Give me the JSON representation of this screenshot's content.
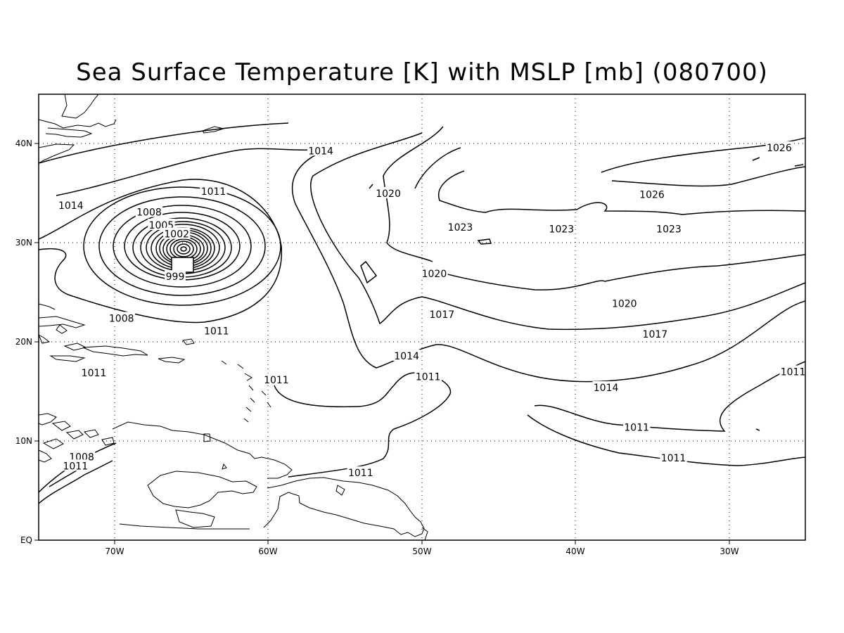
{
  "title": "Sea Surface Temperature [K] with MSLP [mb] (080700)",
  "axes": {
    "x_ticks": [
      "70W",
      "60W",
      "50W",
      "40W",
      "30W"
    ],
    "y_ticks": [
      "40N",
      "30N",
      "20N",
      "10N",
      "EQ"
    ],
    "lon_range": [
      -75,
      -25
    ],
    "lat_range": [
      0,
      45
    ],
    "grid": "dotted"
  },
  "contour_labels": [
    {
      "text": "1014",
      "lon": -56.6,
      "lat": 39.3
    },
    {
      "text": "1020",
      "lon": -52.2,
      "lat": 35.0
    },
    {
      "text": "1026",
      "lon": -26.7,
      "lat": 39.6
    },
    {
      "text": "1026",
      "lon": -35.0,
      "lat": 34.9
    },
    {
      "text": "1023",
      "lon": -47.5,
      "lat": 31.6
    },
    {
      "text": "1023",
      "lon": -40.9,
      "lat": 31.4
    },
    {
      "text": "1023",
      "lon": -33.9,
      "lat": 31.4
    },
    {
      "text": "1014",
      "lon": -72.9,
      "lat": 33.8
    },
    {
      "text": "1011",
      "lon": -63.6,
      "lat": 35.2
    },
    {
      "text": "1008",
      "lon": -67.8,
      "lat": 33.1
    },
    {
      "text": "1005",
      "lon": -67.0,
      "lat": 31.8
    },
    {
      "text": "1002",
      "lon": -66.0,
      "lat": 30.9
    },
    {
      "text": "999",
      "lon": -66.1,
      "lat": 26.6
    },
    {
      "text": "1020",
      "lon": -49.2,
      "lat": 26.9
    },
    {
      "text": "1020",
      "lon": -36.8,
      "lat": 23.9
    },
    {
      "text": "1008",
      "lon": -69.6,
      "lat": 22.4
    },
    {
      "text": "1017",
      "lon": -48.7,
      "lat": 22.8
    },
    {
      "text": "1017",
      "lon": -34.8,
      "lat": 20.8
    },
    {
      "text": "1011",
      "lon": -63.4,
      "lat": 21.1
    },
    {
      "text": "1014",
      "lon": -51.0,
      "lat": 18.6
    },
    {
      "text": "1011",
      "lon": -71.4,
      "lat": 16.9
    },
    {
      "text": "1011",
      "lon": -25.8,
      "lat": 17.0
    },
    {
      "text": "1011",
      "lon": -59.5,
      "lat": 16.2
    },
    {
      "text": "1011",
      "lon": -49.6,
      "lat": 16.5
    },
    {
      "text": "1014",
      "lon": -38.0,
      "lat": 15.4
    },
    {
      "text": "1011",
      "lon": -36.0,
      "lat": 11.4
    },
    {
      "text": "1011",
      "lon": -33.6,
      "lat": 8.3
    },
    {
      "text": "1008",
      "lon": -72.2,
      "lat": 8.4
    },
    {
      "text": "1011",
      "lon": -72.6,
      "lat": 7.5
    },
    {
      "text": "1011",
      "lon": -54.0,
      "lat": 6.8
    }
  ]
}
